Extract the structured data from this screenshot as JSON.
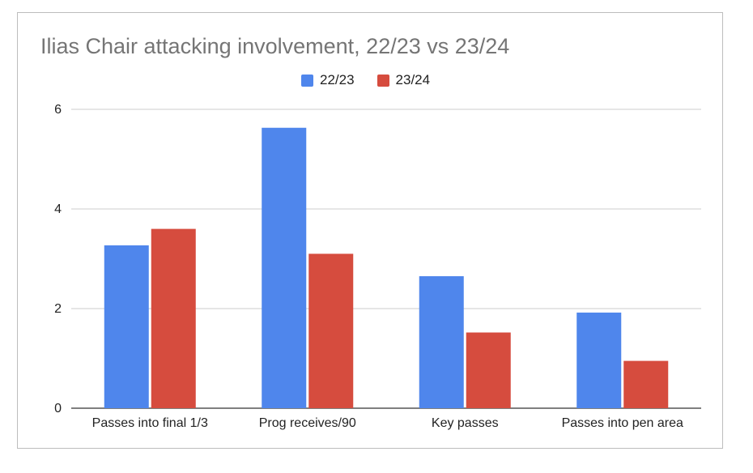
{
  "chart_data": {
    "type": "bar",
    "title": "Ilias Chair attacking involvement, 22/23 vs 23/24",
    "xlabel": "",
    "ylabel": "",
    "categories": [
      "Passes into final 1/3",
      "Prog receives/90",
      "Key passes",
      "Passes into pen area"
    ],
    "series": [
      {
        "name": "22/23",
        "color": "#4f86ec",
        "values": [
          3.27,
          5.63,
          2.65,
          1.92
        ]
      },
      {
        "name": "23/24",
        "color": "#d64c3e",
        "values": [
          3.6,
          3.1,
          1.52,
          0.95
        ]
      }
    ],
    "ylim": [
      0,
      6
    ],
    "yticks": [
      "0",
      "2",
      "4",
      "6"
    ],
    "grid": true,
    "legend_position": "top"
  }
}
